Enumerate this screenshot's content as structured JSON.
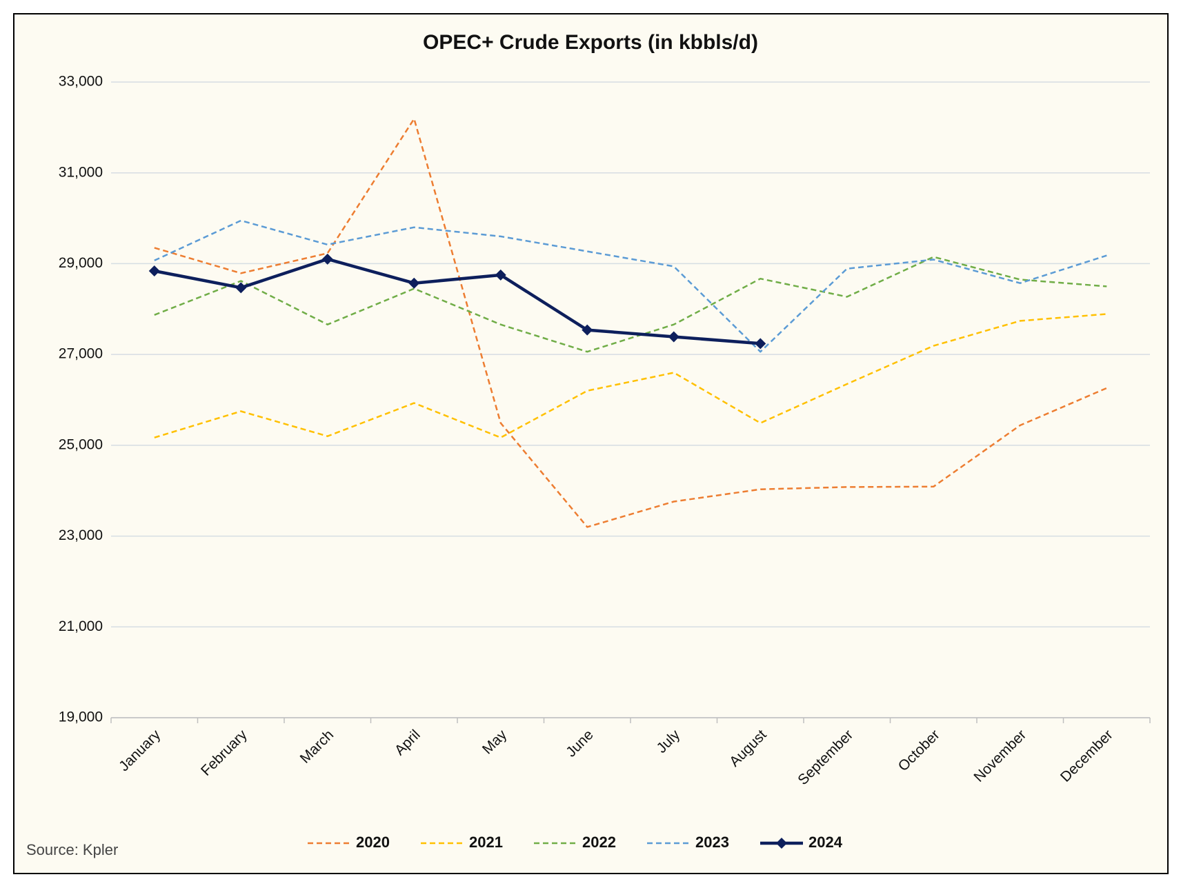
{
  "chart_data": {
    "type": "line",
    "title": "OPEC+ Crude Exports (in kbbls/d)",
    "source": "Source: Kpler",
    "categories": [
      "January",
      "February",
      "March",
      "April",
      "May",
      "June",
      "July",
      "August",
      "September",
      "October",
      "November",
      "December"
    ],
    "ylim": [
      19000,
      33000
    ],
    "yticks": [
      {
        "value": 19000,
        "label": "19,000"
      },
      {
        "value": 21000,
        "label": "21,000"
      },
      {
        "value": 23000,
        "label": "23,000"
      },
      {
        "value": 25000,
        "label": "25,000"
      },
      {
        "value": 27000,
        "label": "27,000"
      },
      {
        "value": 29000,
        "label": "29,000"
      },
      {
        "value": 31000,
        "label": "31,000"
      },
      {
        "value": 33000,
        "label": "33,000"
      }
    ],
    "grid": true,
    "legend": "bottom",
    "series": [
      {
        "name": "2020",
        "color": "#ed7d31",
        "style": "dashed",
        "values": [
          29350,
          28790,
          29230,
          32190,
          25490,
          23200,
          23760,
          24030,
          24080,
          24090,
          25440,
          26260
        ]
      },
      {
        "name": "2021",
        "color": "#ffc000",
        "style": "dashed",
        "values": [
          25170,
          25750,
          25200,
          25930,
          25170,
          26200,
          26600,
          25490,
          26350,
          27190,
          27740,
          27890
        ]
      },
      {
        "name": "2022",
        "color": "#70ad47",
        "style": "dashed",
        "values": [
          27870,
          28620,
          27660,
          28450,
          27660,
          27060,
          27660,
          28670,
          28270,
          29150,
          28650,
          28500
        ]
      },
      {
        "name": "2023",
        "color": "#5b9bd5",
        "style": "dashed",
        "values": [
          29070,
          29950,
          29420,
          29800,
          29600,
          29270,
          28940,
          27060,
          28890,
          29090,
          28570,
          29180
        ]
      },
      {
        "name": "2024",
        "color": "#0d1f5c",
        "style": "solid",
        "marker": "diamond",
        "values": [
          28840,
          28470,
          29100,
          28570,
          28750,
          27540,
          27390,
          27240,
          null,
          null,
          null,
          null
        ]
      }
    ]
  }
}
